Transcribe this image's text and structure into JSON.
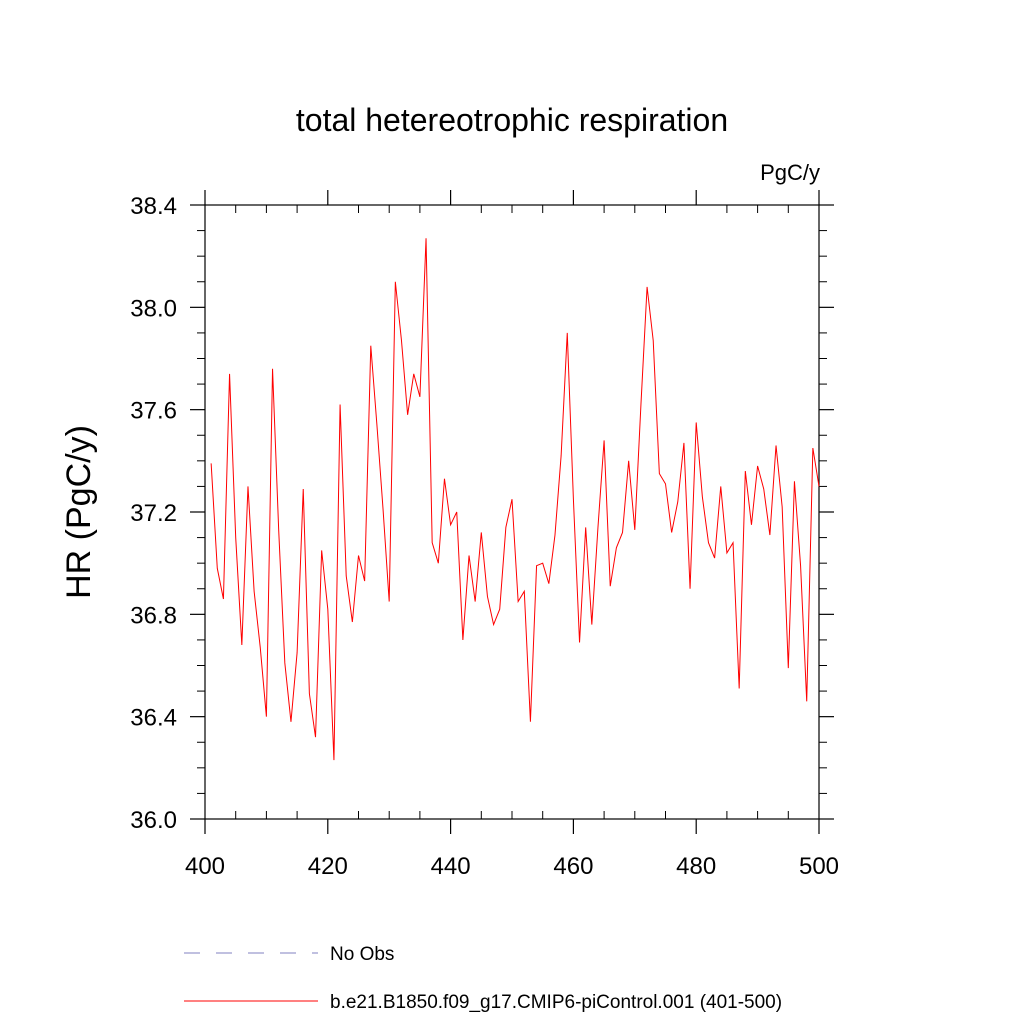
{
  "chart_data": {
    "type": "line",
    "title": "total hetereotrophic respiration",
    "units": "PgC/y",
    "xlabel": "",
    "ylabel": "HR  (PgC/y)",
    "xlim": [
      400,
      500
    ],
    "ylim": [
      36.0,
      38.4
    ],
    "xticks": [
      400,
      420,
      440,
      460,
      480,
      500
    ],
    "xtick_labels": [
      "400",
      "420",
      "440",
      "460",
      "480",
      "500"
    ],
    "yticks": [
      36.0,
      36.4,
      36.8,
      37.2,
      37.6,
      38.0,
      38.4
    ],
    "ytick_labels": [
      "36.0",
      "36.4",
      "36.8",
      "37.2",
      "37.6",
      "38.0",
      "38.4"
    ],
    "x_minor_step": 5,
    "y_minor_step": 0.1,
    "grid": false,
    "series": [
      {
        "name": "b.e21.B1850.f09_g17.CMIP6-piControl.001 (401-500)",
        "color": "#ff0000",
        "dash": "solid",
        "x": [
          401,
          402,
          403,
          404,
          405,
          406,
          407,
          408,
          409,
          410,
          411,
          412,
          413,
          414,
          415,
          416,
          417,
          418,
          419,
          420,
          421,
          422,
          423,
          424,
          425,
          426,
          427,
          428,
          429,
          430,
          431,
          432,
          433,
          434,
          435,
          436,
          437,
          438,
          439,
          440,
          441,
          442,
          443,
          444,
          445,
          446,
          447,
          448,
          449,
          450,
          451,
          452,
          453,
          454,
          455,
          456,
          457,
          458,
          459,
          460,
          461,
          462,
          463,
          464,
          465,
          466,
          467,
          468,
          469,
          470,
          471,
          472,
          473,
          474,
          475,
          476,
          477,
          478,
          479,
          480,
          481,
          482,
          483,
          484,
          485,
          486,
          487,
          488,
          489,
          490,
          491,
          492,
          493,
          494,
          495,
          496,
          497,
          498,
          499,
          500
        ],
        "values": [
          37.39,
          36.98,
          36.86,
          37.74,
          37.1,
          36.68,
          37.3,
          36.89,
          36.67,
          36.4,
          37.76,
          37.13,
          36.61,
          36.38,
          36.65,
          37.29,
          36.49,
          36.32,
          37.05,
          36.82,
          36.23,
          37.62,
          36.95,
          36.77,
          37.03,
          36.93,
          37.85,
          37.54,
          37.21,
          36.85,
          38.1,
          37.87,
          37.58,
          37.74,
          37.65,
          38.27,
          37.08,
          37.0,
          37.33,
          37.15,
          37.2,
          36.7,
          37.03,
          36.85,
          37.12,
          36.87,
          36.76,
          36.82,
          37.14,
          37.25,
          36.85,
          36.89,
          36.38,
          36.99,
          37.0,
          36.92,
          37.11,
          37.42,
          37.9,
          37.25,
          36.69,
          37.14,
          36.76,
          37.14,
          37.48,
          36.91,
          37.06,
          37.12,
          37.4,
          37.13,
          37.62,
          38.08,
          37.87,
          37.35,
          37.31,
          37.12,
          37.24,
          37.47,
          36.9,
          37.55,
          37.26,
          37.08,
          37.02,
          37.3,
          37.04,
          37.08,
          36.51,
          37.36,
          37.15,
          37.38,
          37.29,
          37.11,
          37.46,
          37.22,
          36.59,
          37.32,
          36.99,
          36.46,
          37.45,
          37.3
        ]
      },
      {
        "name": "No Obs",
        "color": "#8080c0",
        "dash": "dashed",
        "x": [],
        "values": []
      }
    ],
    "legend_position": "bottom-left, below plot"
  }
}
